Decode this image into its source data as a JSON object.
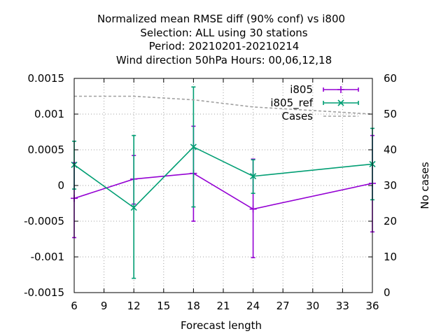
{
  "chart_data": {
    "type": "line",
    "title_lines": [
      "Normalized mean RMSE diff (90% conf) vs i800",
      "Selection: ALL using    30 stations",
      "Period: 20210201-20210214",
      "Wind direction 50hPa   Hours:  00,06,12,18"
    ],
    "xlabel": "Forecast length",
    "ylabel": "",
    "y2label": "No cases",
    "xlim": [
      6,
      36
    ],
    "ylim": [
      -0.0015,
      0.0015
    ],
    "y2lim": [
      0,
      60
    ],
    "xticks": [
      "6",
      "9",
      "12",
      "15",
      "18",
      "21",
      "24",
      "27",
      "30",
      "33",
      "36"
    ],
    "yticks": [
      "0.0015",
      "0.001",
      "0.0005",
      "0",
      "-0.0005",
      "-0.001",
      "-0.0015"
    ],
    "y2ticks": [
      "60",
      "50",
      "40",
      "30",
      "20",
      "10",
      "0"
    ],
    "grid": true,
    "legend_position": "top-right",
    "series": [
      {
        "name": "i805",
        "color": "#9400d3",
        "marker": "plus",
        "x": [
          6,
          12,
          18,
          24,
          36
        ],
        "y": [
          -0.00018,
          9e-05,
          0.00017,
          -0.00033,
          3e-05
        ],
        "err_low": [
          -0.00073,
          -0.00026,
          -0.0005,
          -0.00101,
          -0.00065
        ],
        "err_high": [
          0.00032,
          0.00042,
          0.00083,
          0.00037,
          0.0007
        ]
      },
      {
        "name": "i805_ref",
        "color": "#009e73",
        "marker": "cross",
        "x": [
          6,
          12,
          18,
          24,
          36
        ],
        "y": [
          0.00029,
          -0.00031,
          0.00054,
          0.00013,
          0.0003
        ],
        "err_low": [
          -5e-05,
          -0.0013,
          -0.0003,
          -0.00011,
          -0.0002
        ],
        "err_high": [
          0.00062,
          0.0007,
          0.00138,
          0.00036,
          0.0008
        ]
      },
      {
        "name": "Cases",
        "color": "#a0a0a0",
        "axis": "y2",
        "dashed": true,
        "x": [
          6,
          12,
          18,
          24,
          30,
          36
        ],
        "y": [
          55,
          55,
          54,
          52,
          51,
          50
        ]
      }
    ]
  }
}
